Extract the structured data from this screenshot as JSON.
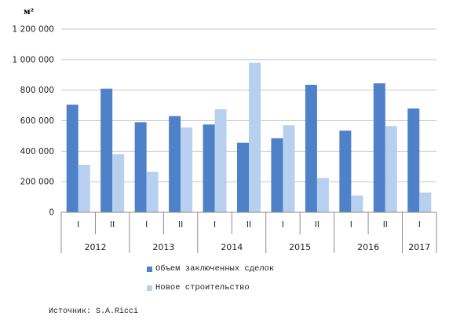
{
  "unit_label": "м²",
  "source": "Источник: S.A.Ricci",
  "colors": {
    "series1": "#4f81c9",
    "series2": "#b8d0ef",
    "grid": "#c8c8c8",
    "axis": "#8c8c8c"
  },
  "chart_data": {
    "type": "bar",
    "title": "",
    "xlabel": "",
    "ylabel": "м²",
    "ylim": [
      0,
      1200000
    ],
    "yticks": [
      0,
      200000,
      400000,
      600000,
      800000,
      1000000,
      1200000
    ],
    "ytick_labels": [
      "0",
      "200 000",
      "400 000",
      "600 000",
      "800 000",
      "1 000 000",
      "1 200 000"
    ],
    "categories": [
      "I",
      "II",
      "I",
      "II",
      "I",
      "II",
      "I",
      "II",
      "I",
      "II",
      "I"
    ],
    "groups": [
      {
        "label": "2012",
        "count": 2
      },
      {
        "label": "2013",
        "count": 2
      },
      {
        "label": "2014",
        "count": 2
      },
      {
        "label": "2015",
        "count": 2
      },
      {
        "label": "2016",
        "count": 2
      },
      {
        "label": "2017",
        "count": 1
      }
    ],
    "series": [
      {
        "name": "Объем заключенных сделок",
        "values": [
          705000,
          810000,
          590000,
          630000,
          575000,
          455000,
          485000,
          835000,
          535000,
          845000,
          680000
        ]
      },
      {
        "name": "Новое строительство",
        "values": [
          310000,
          380000,
          265000,
          555000,
          675000,
          980000,
          570000,
          225000,
          110000,
          565000,
          130000
        ]
      }
    ],
    "grid": true,
    "legend": "bottom"
  }
}
